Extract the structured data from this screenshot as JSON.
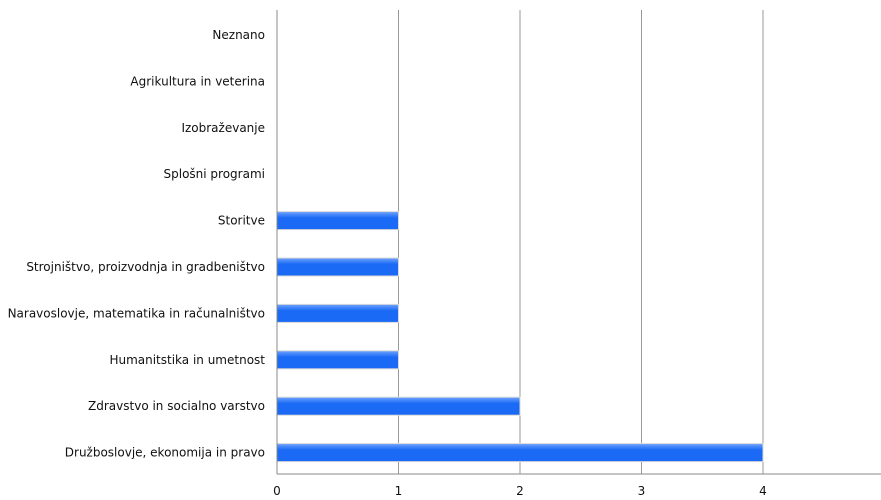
{
  "chart_data": {
    "type": "bar",
    "orientation": "horizontal",
    "categories": [
      "Neznano",
      "Agrikultura in veterina",
      "Izobraževanje",
      "Splošni programi",
      "Storitve",
      "Strojništvo, proizvodnja in gradbeništvo",
      "Naravoslovje, matematika in računalništvo",
      "Humanitstika in umetnost",
      "Zdravstvo in socialno varstvo",
      "Družboslovje, ekonomija in pravo"
    ],
    "values": [
      0,
      0,
      0,
      0,
      1,
      1,
      1,
      1,
      2,
      4
    ],
    "xlim": [
      0,
      5
    ],
    "xticks": [
      "0",
      "1",
      "2",
      "3",
      "4"
    ],
    "grid": true,
    "title": "",
    "xlabel": "",
    "ylabel": "",
    "colors": {
      "bar": "#1a6af5",
      "bar_highlight": "#6fa3ff",
      "grid": "#999999",
      "axis": "#888888"
    }
  }
}
